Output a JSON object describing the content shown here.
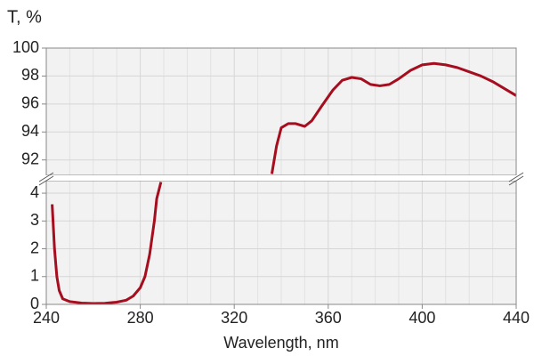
{
  "chart_data": [
    {
      "type": "line",
      "title": "T, %",
      "color": "#a50e1e",
      "xlim": [
        240,
        440
      ],
      "ylim": [
        90.9,
        100
      ],
      "yticks": [
        92,
        94,
        96,
        98,
        100
      ],
      "x": [
        336,
        338,
        340,
        343,
        346,
        350,
        353,
        357,
        362,
        366,
        370,
        374,
        378,
        382,
        386,
        390,
        395,
        400,
        405,
        410,
        415,
        420,
        425,
        430,
        435,
        440
      ],
      "values": [
        91.0,
        93.0,
        94.3,
        94.6,
        94.6,
        94.4,
        94.8,
        95.8,
        97.0,
        97.7,
        97.9,
        97.8,
        97.4,
        97.3,
        97.4,
        97.8,
        98.4,
        98.8,
        98.9,
        98.8,
        98.6,
        98.3,
        98.0,
        97.6,
        97.1,
        96.6
      ]
    },
    {
      "type": "line",
      "xlabel": "Wavelength, nm",
      "color": "#a50e1e",
      "xlim": [
        240,
        440
      ],
      "ylim": [
        0,
        4.45
      ],
      "yticks": [
        0,
        1,
        2,
        3,
        4
      ],
      "xticks": [
        240,
        280,
        320,
        360,
        400,
        440
      ],
      "minor_xticks": [
        250,
        260,
        270,
        290,
        300,
        310,
        330,
        340,
        350,
        370,
        380,
        390,
        410,
        420,
        430
      ],
      "x": [
        242.5,
        243.5,
        244.5,
        245.5,
        247,
        250,
        255,
        260,
        265,
        270,
        274,
        277,
        280,
        282,
        284,
        286,
        287,
        288.8
      ],
      "values": [
        3.6,
        2.0,
        1.0,
        0.5,
        0.2,
        0.1,
        0.05,
        0.03,
        0.04,
        0.08,
        0.15,
        0.3,
        0.6,
        1.0,
        1.8,
        3.0,
        3.8,
        4.4
      ]
    }
  ]
}
